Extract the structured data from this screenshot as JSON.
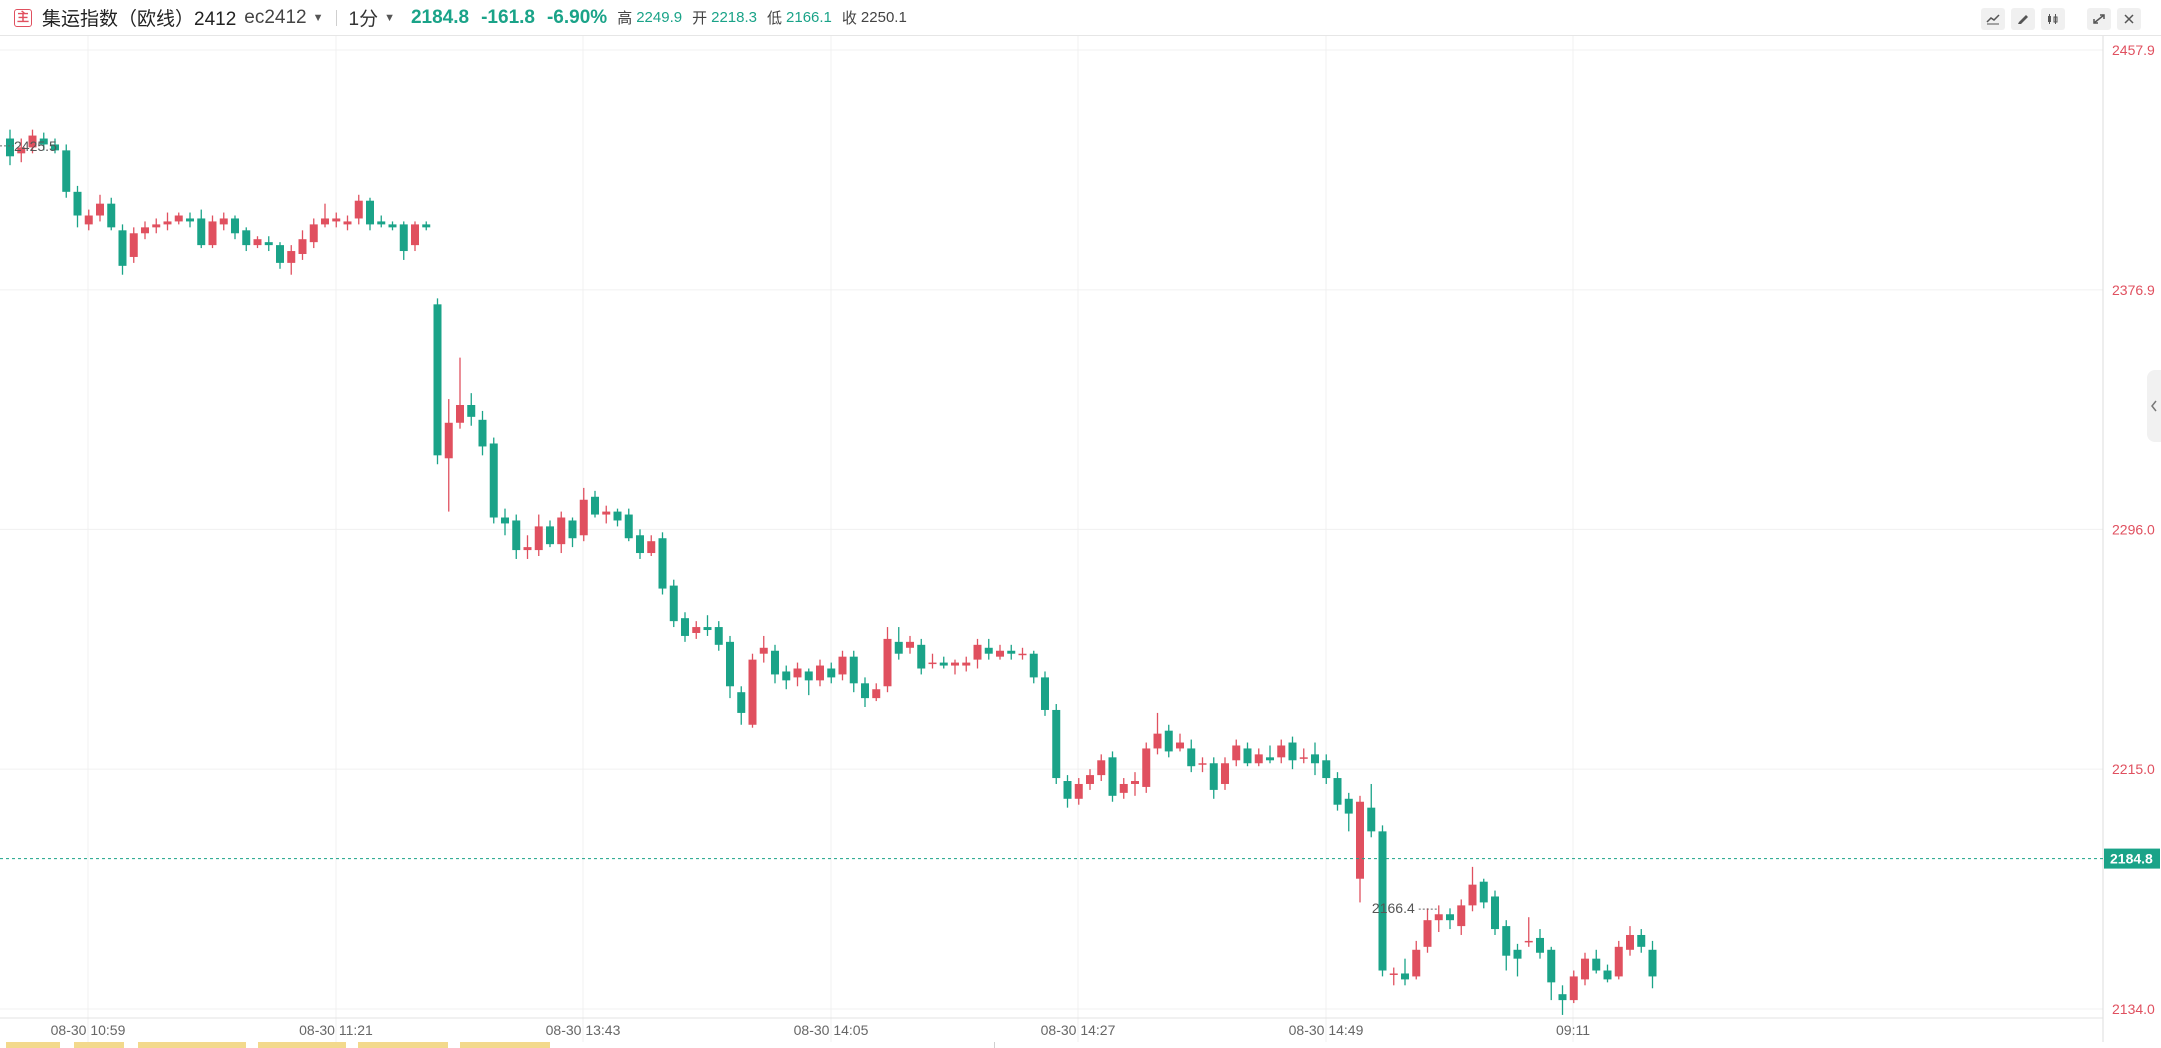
{
  "header": {
    "badge": "主",
    "title": "集运指数（欧线）2412",
    "code": "ec2412",
    "interval": "1分",
    "price": "2184.8",
    "change": "-161.8",
    "change_pct": "-6.90%",
    "high_label": "高",
    "high": "2249.9",
    "open_label": "开",
    "open": "2218.3",
    "low_label": "低",
    "low": "2166.1",
    "close_label": "收",
    "close": "2250.1"
  },
  "toolbar": {
    "icons": [
      "line-style-icon",
      "draw-pencil-icon",
      "candle-style-icon",
      "fullscreen-icon",
      "close-icon"
    ]
  },
  "colors": {
    "up": "#e0505f",
    "down": "#1aa388",
    "axis_red": "#e0505f",
    "price_line": "#1aa388"
  },
  "chart_data": {
    "type": "candlestick",
    "y_axis": {
      "range": [
        2134.0,
        2457.9
      ],
      "ticks": [
        "2457.9",
        "2376.9",
        "2296.0",
        "2215.0",
        "2134.0"
      ]
    },
    "x_axis": {
      "ticks": [
        "08-30 10:59",
        "08-30 11:21",
        "08-30 13:43",
        "08-30 14:05",
        "08-30 14:27",
        "08-30 14:49",
        "09:11"
      ]
    },
    "last_price": "2184.8",
    "annotations": {
      "high": "2425.5",
      "low": "2166.4"
    },
    "candles": [
      [
        2428,
        2422,
        2431,
        2419
      ],
      [
        2423,
        2425,
        2428,
        2420
      ],
      [
        2425,
        2429,
        2431,
        2423
      ],
      [
        2428,
        2426,
        2430,
        2424
      ],
      [
        2426,
        2424,
        2428,
        2423
      ],
      [
        2424,
        2410,
        2426,
        2408
      ],
      [
        2410,
        2402,
        2412,
        2398
      ],
      [
        2399,
        2402,
        2404,
        2397
      ],
      [
        2402,
        2406,
        2409,
        2400
      ],
      [
        2406,
        2398,
        2408,
        2397
      ],
      [
        2397,
        2385,
        2399,
        2382
      ],
      [
        2388,
        2396,
        2398,
        2386
      ],
      [
        2396,
        2398,
        2400,
        2394
      ],
      [
        2398,
        2399,
        2401,
        2396
      ],
      [
        2399,
        2400,
        2403,
        2397
      ],
      [
        2400,
        2402,
        2403,
        2399
      ],
      [
        2401,
        2400,
        2403,
        2398
      ],
      [
        2401,
        2392,
        2404,
        2391
      ],
      [
        2392,
        2400,
        2402,
        2391
      ],
      [
        2399,
        2401,
        2403,
        2397
      ],
      [
        2401,
        2396,
        2402,
        2394
      ],
      [
        2397,
        2392,
        2398,
        2390
      ],
      [
        2392,
        2394,
        2395,
        2391
      ],
      [
        2393,
        2392,
        2395,
        2390
      ],
      [
        2392,
        2386,
        2393,
        2384
      ],
      [
        2386,
        2390,
        2392,
        2382
      ],
      [
        2389,
        2394,
        2397,
        2387
      ],
      [
        2393,
        2399,
        2401,
        2391
      ],
      [
        2399,
        2401,
        2406,
        2398
      ],
      [
        2400,
        2401,
        2403,
        2398
      ],
      [
        2399,
        2400,
        2402,
        2397
      ],
      [
        2401,
        2407,
        2409,
        2399
      ],
      [
        2407,
        2399,
        2408,
        2397
      ],
      [
        2400,
        2399,
        2402,
        2398
      ],
      [
        2399,
        2398,
        2400,
        2397
      ],
      [
        2399,
        2390,
        2400,
        2387
      ],
      [
        2392,
        2399,
        2400,
        2390
      ],
      [
        2399,
        2398,
        2400,
        2397
      ],
      [
        2372,
        2321,
        2374,
        2318
      ],
      [
        2320,
        2332,
        2340,
        2302
      ],
      [
        2332,
        2338,
        2354,
        2330
      ],
      [
        2338,
        2334,
        2342,
        2331
      ],
      [
        2333,
        2324,
        2336,
        2321
      ],
      [
        2325,
        2300,
        2327,
        2298
      ],
      [
        2300,
        2298,
        2303,
        2294
      ],
      [
        2299,
        2289,
        2301,
        2286
      ],
      [
        2289,
        2290,
        2294,
        2286
      ],
      [
        2289,
        2297,
        2301,
        2287
      ],
      [
        2297,
        2291,
        2299,
        2290
      ],
      [
        2291,
        2300,
        2302,
        2288
      ],
      [
        2299,
        2293,
        2300,
        2290
      ],
      [
        2294,
        2306,
        2310,
        2292
      ],
      [
        2307,
        2301,
        2309,
        2300
      ],
      [
        2301,
        2302,
        2304,
        2298
      ],
      [
        2302,
        2299,
        2303,
        2297
      ],
      [
        2301,
        2293,
        2303,
        2292
      ],
      [
        2294,
        2288,
        2296,
        2286
      ],
      [
        2288,
        2292,
        2294,
        2287
      ],
      [
        2293,
        2276,
        2295,
        2274
      ],
      [
        2277,
        2265,
        2279,
        2263
      ],
      [
        2266,
        2260,
        2268,
        2258
      ],
      [
        2261,
        2263,
        2265,
        2259
      ],
      [
        2263,
        2262,
        2267,
        2260
      ],
      [
        2263,
        2257,
        2265,
        2255
      ],
      [
        2258,
        2243,
        2260,
        2239
      ],
      [
        2241,
        2234,
        2243,
        2230
      ],
      [
        2230,
        2252,
        2254,
        2229
      ],
      [
        2254,
        2256,
        2260,
        2251
      ],
      [
        2255,
        2247,
        2257,
        2244
      ],
      [
        2248,
        2245,
        2250,
        2242
      ],
      [
        2246,
        2249,
        2251,
        2243
      ],
      [
        2248,
        2245,
        2249,
        2240
      ],
      [
        2245,
        2250,
        2252,
        2243
      ],
      [
        2249,
        2246,
        2251,
        2244
      ],
      [
        2247,
        2253,
        2255,
        2245
      ],
      [
        2253,
        2244,
        2255,
        2241
      ],
      [
        2244,
        2239,
        2246,
        2236
      ],
      [
        2239,
        2242,
        2244,
        2238
      ],
      [
        2243,
        2259,
        2263,
        2241
      ],
      [
        2258,
        2254,
        2263,
        2252
      ],
      [
        2256,
        2258,
        2260,
        2254
      ],
      [
        2257,
        2249,
        2259,
        2247
      ],
      [
        2251,
        2251,
        2254,
        2249
      ],
      [
        2251,
        2250,
        2253,
        2249
      ],
      [
        2250,
        2251,
        2252,
        2247
      ],
      [
        2250,
        2251,
        2253,
        2248
      ],
      [
        2252,
        2257,
        2259,
        2249
      ],
      [
        2256,
        2254,
        2259,
        2252
      ],
      [
        2253,
        2255,
        2257,
        2252
      ],
      [
        2255,
        2254,
        2257,
        2252
      ],
      [
        2254,
        2254,
        2256,
        2252
      ],
      [
        2254,
        2246,
        2255,
        2244
      ],
      [
        2246,
        2235,
        2248,
        2233
      ],
      [
        2235,
        2212,
        2237,
        2210
      ],
      [
        2211,
        2205,
        2213,
        2202
      ],
      [
        2205,
        2210,
        2212,
        2203
      ],
      [
        2210,
        2213,
        2215,
        2208
      ],
      [
        2213,
        2218,
        2220,
        2211
      ],
      [
        2219,
        2206,
        2221,
        2204
      ],
      [
        2207,
        2210,
        2212,
        2205
      ],
      [
        2210,
        2211,
        2214,
        2206
      ],
      [
        2209,
        2222,
        2224,
        2207
      ],
      [
        2222,
        2227,
        2234,
        2220
      ],
      [
        2228,
        2221,
        2230,
        2219
      ],
      [
        2222,
        2224,
        2227,
        2221
      ],
      [
        2222,
        2216,
        2225,
        2214
      ],
      [
        2217,
        2217,
        2219,
        2214
      ],
      [
        2217,
        2208,
        2219,
        2205
      ],
      [
        2210,
        2217,
        2219,
        2208
      ],
      [
        2218,
        2223,
        2225,
        2216
      ],
      [
        2222,
        2217,
        2224,
        2216
      ],
      [
        2217,
        2220,
        2222,
        2216
      ],
      [
        2219,
        2218,
        2223,
        2217
      ],
      [
        2219,
        2223,
        2225,
        2217
      ],
      [
        2224,
        2218,
        2226,
        2215
      ],
      [
        2219,
        2219,
        2222,
        2217
      ],
      [
        2220,
        2217,
        2224,
        2213
      ],
      [
        2218,
        2212,
        2220,
        2210
      ],
      [
        2212,
        2203,
        2214,
        2201
      ],
      [
        2205,
        2200,
        2207,
        2194
      ],
      [
        2178,
        2204,
        2206,
        2170
      ],
      [
        2202,
        2194,
        2210,
        2192
      ],
      [
        2194,
        2147,
        2196,
        2145
      ],
      [
        2146,
        2146,
        2148,
        2142
      ],
      [
        2146,
        2144,
        2151,
        2142
      ],
      [
        2145,
        2154,
        2157,
        2144
      ],
      [
        2155,
        2164,
        2168,
        2153
      ],
      [
        2164,
        2166,
        2169,
        2160
      ],
      [
        2166,
        2164,
        2168,
        2161
      ],
      [
        2162,
        2169,
        2171,
        2159
      ],
      [
        2169,
        2176,
        2182,
        2167
      ],
      [
        2177,
        2170,
        2178,
        2168
      ],
      [
        2172,
        2161,
        2174,
        2159
      ],
      [
        2162,
        2152,
        2164,
        2147
      ],
      [
        2154,
        2151,
        2156,
        2145
      ],
      [
        2157,
        2157,
        2165,
        2155
      ],
      [
        2158,
        2153,
        2161,
        2151
      ],
      [
        2154,
        2143,
        2155,
        2137
      ],
      [
        2139,
        2137,
        2142,
        2132
      ],
      [
        2137,
        2145,
        2147,
        2136
      ],
      [
        2144,
        2151,
        2153,
        2142
      ],
      [
        2151,
        2147,
        2154,
        2146
      ],
      [
        2147,
        2144,
        2149,
        2143
      ],
      [
        2145,
        2155,
        2157,
        2144
      ],
      [
        2154,
        2159,
        2162,
        2152
      ],
      [
        2159,
        2155,
        2161,
        2153
      ],
      [
        2154,
        2145,
        2157,
        2141
      ]
    ]
  }
}
